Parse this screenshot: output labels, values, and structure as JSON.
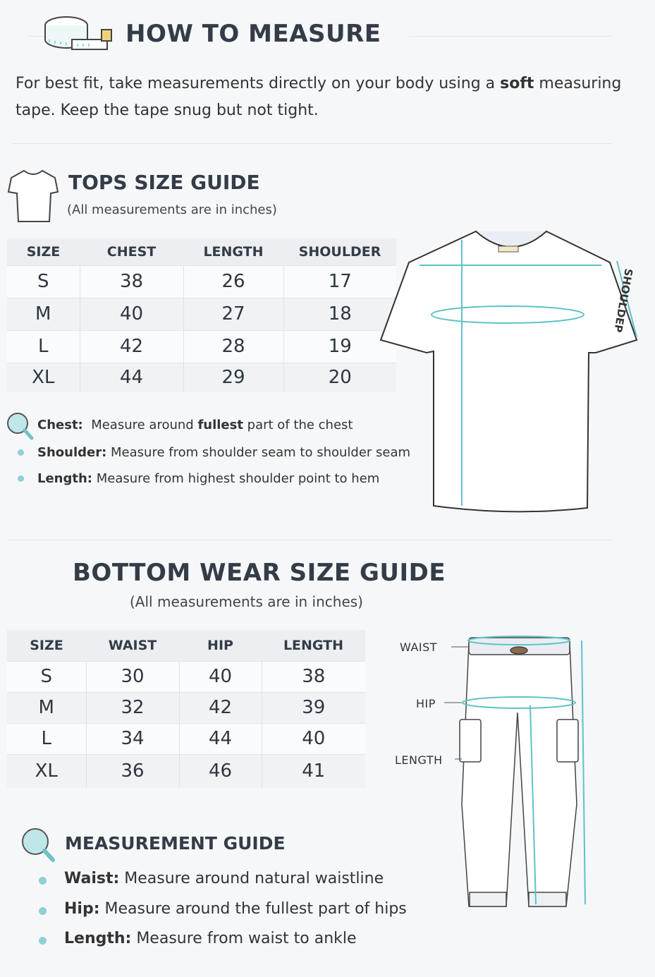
{
  "header": {
    "title": "HOW TO MEASURE",
    "intro_prefix": "For best fit, take measurements directly on your body using a ",
    "intro_bold": "soft",
    "intro_suffix": " measuring tape. Keep the tape snug but not tight."
  },
  "tops": {
    "title": "TOPS SIZE GUIDE",
    "subtitle": "(All measurements are in inches)",
    "columns": [
      "SIZE",
      "CHEST",
      "LENGTH",
      "SHOULDER"
    ],
    "rows": [
      [
        "S",
        "38",
        "26",
        "17"
      ],
      [
        "M",
        "40",
        "27",
        "18"
      ],
      [
        "L",
        "42",
        "28",
        "19"
      ],
      [
        "XL",
        "44",
        "29",
        "20"
      ]
    ],
    "notes": [
      {
        "term": "Chest:",
        "pre": "Measure around ",
        "bold": "fullest",
        "post": " part of the chest"
      },
      {
        "term": "Shoulder:",
        "pre": "Measure from shoulder seam to shoulder seam",
        "bold": "",
        "post": ""
      },
      {
        "term": "Length:",
        "pre": "Measure from highest shoulder point to hem",
        "bold": "",
        "post": ""
      }
    ],
    "diagram_label": "SHOULDEP"
  },
  "bottoms": {
    "title": "BOTTOM  WEAR SIZE GUIDE",
    "subtitle": "(All measurements are in inches)",
    "columns": [
      "SIZE",
      "WAIST",
      "HIP",
      "LENGTH"
    ],
    "rows": [
      [
        "S",
        "30",
        "40",
        "38"
      ],
      [
        "M",
        "32",
        "42",
        "39"
      ],
      [
        "L",
        "34",
        "44",
        "40"
      ],
      [
        "XL",
        "36",
        "46",
        "41"
      ]
    ],
    "diagram_labels": {
      "waist": "WAIST",
      "hip": "HIP",
      "length": "LENGTH"
    },
    "guide_title": "MEASUREMENT GUIDE",
    "notes": [
      {
        "term": "Waist:",
        "text": "Measure around natural waistline"
      },
      {
        "term": "Hip:",
        "text": "Measure around the fullest part of hips"
      },
      {
        "term": "Length:",
        "text": "Measure from waist to ankle"
      }
    ]
  },
  "colors": {
    "accent": "#5cc3c8",
    "text": "#333c47"
  }
}
